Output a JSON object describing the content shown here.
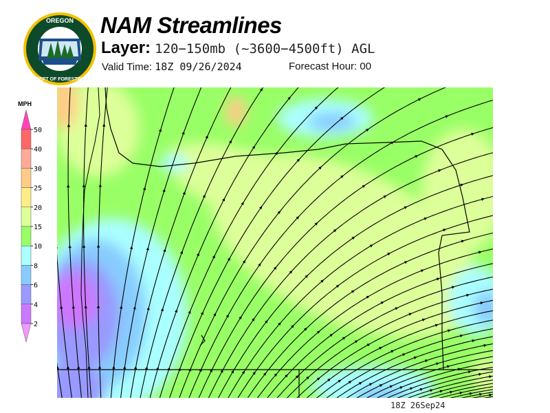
{
  "header": {
    "title": "NAM Streamlines",
    "layer_label": "Layer:",
    "layer_value": "120−150mb (~3600−4500ft) AGL",
    "valid_label": "Valid Time:",
    "valid_value": "18Z 09/26/2024",
    "forecast_label": "Forecast Hour:",
    "forecast_value": "00"
  },
  "logo": {
    "top_text": "OREGON",
    "bottom_text": "DEPARTMENT OF FORESTRY"
  },
  "legend": {
    "units": "MPH",
    "labels": [
      "50",
      "40",
      "30",
      "25",
      "20",
      "15",
      "10",
      "8",
      "6",
      "4",
      "2"
    ],
    "colors": [
      "#ff6666",
      "#ffaa99",
      "#ffcc88",
      "#ffee88",
      "#ddff99",
      "#99ff66",
      "#aaffff",
      "#88ccff",
      "#9999ff",
      "#cc77ff"
    ],
    "top_tip_color": "#ff44bb",
    "bottom_tip_color": "#ee99ff"
  },
  "map": {
    "timestamp": "18Z 26Sep24"
  }
}
